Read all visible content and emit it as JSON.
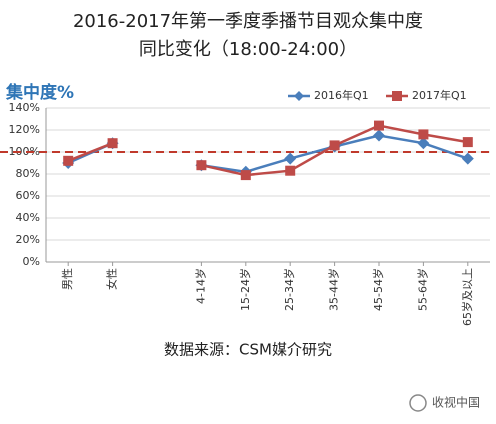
{
  "chart_data": {
    "type": "line",
    "title": "2016-2017年第一季度季播节目观众集中度",
    "subtitle": "同比变化（18:00-24:00）",
    "y_label": "集中度%",
    "categories": [
      "男性",
      "女性",
      null,
      "4-14岁",
      "15-24岁",
      "25-34岁",
      "35-44岁",
      "45-54岁",
      "55-64岁",
      "65岁及以上"
    ],
    "series": [
      {
        "name": "2016年Q1",
        "color": "#4a7ebb",
        "marker": "diamond",
        "values": [
          90,
          108,
          null,
          88,
          82,
          94,
          105,
          115,
          108,
          94
        ]
      },
      {
        "name": "2017年Q1",
        "color": "#be4b48",
        "marker": "square",
        "values": [
          92,
          108,
          null,
          88,
          79,
          83,
          106,
          124,
          116,
          109
        ]
      }
    ],
    "reference_value": 100,
    "reference_color": "#c0392b",
    "ylim": [
      0,
      140
    ],
    "yticks": [
      {
        "value": 0,
        "label": "0%"
      },
      {
        "value": 20,
        "label": "20%"
      },
      {
        "value": 40,
        "label": "40%"
      },
      {
        "value": 60,
        "label": "60%"
      },
      {
        "value": 80,
        "label": "80%"
      },
      {
        "value": 100,
        "label": "100%"
      },
      {
        "value": 120,
        "label": "120%"
      },
      {
        "value": 140,
        "label": "140%"
      }
    ],
    "grid": true,
    "legend": "top-right",
    "source": "数据来源：CSM媒介研究",
    "watermark": "收视中国"
  }
}
